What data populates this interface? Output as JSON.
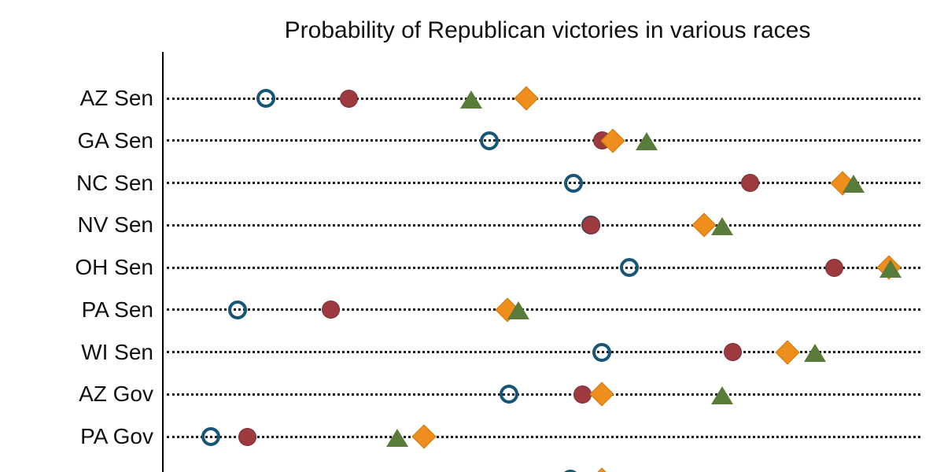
{
  "title": "Probability of Republican victories in various races",
  "chart_data": {
    "type": "scatter",
    "subtype": "cleveland-dot-plot",
    "title": "Probability of Republican victories in various races",
    "xlabel": "",
    "ylabel": "",
    "xlim": [
      0,
      100
    ],
    "x_axis_labels_visible": false,
    "grid": "horizontal dotted guide line per category",
    "legend": "none visible",
    "categories": [
      "AZ Sen",
      "GA Sen",
      "NC Sen",
      "NV Sen",
      "OH Sen",
      "PA Sen",
      "WI Sen",
      "AZ Gov",
      "PA Gov"
    ],
    "series": [
      {
        "name": "forecast-open-circle",
        "marker": "open-circle",
        "color": "#175676",
        "values": [
          13.6,
          43.1,
          54.2,
          56.5,
          61.6,
          9.9,
          57.9,
          45.7,
          6.3
        ]
      },
      {
        "name": "forecast-filled-circle",
        "marker": "filled-circle",
        "color": "#9c3a40",
        "values": [
          24.6,
          58.0,
          77.5,
          56.5,
          88.6,
          22.2,
          75.2,
          55.4,
          11.2
        ]
      },
      {
        "name": "forecast-diamond",
        "marker": "diamond",
        "color": "#ee8e1d",
        "values": [
          48.0,
          59.4,
          89.7,
          71.4,
          95.8,
          45.5,
          82.4,
          57.9,
          34.5
        ]
      },
      {
        "name": "forecast-triangle",
        "marker": "triangle",
        "color": "#5a7c3a",
        "values": [
          40.7,
          63.9,
          91.2,
          73.8,
          96.1,
          46.9,
          86.1,
          73.8,
          30.9
        ]
      }
    ],
    "partial_bottom_row_cut_off_by_crop": {
      "note": "tops of two markers of a tenth row peek above the bottom edge",
      "visible_markers": [
        {
          "marker": "open-circle",
          "value": 53.8
        },
        {
          "marker": "diamond",
          "value": 57.9
        }
      ]
    }
  },
  "colors": {
    "background": "#ffffff",
    "axis": "#000000",
    "guide_dots": "#1c1c1c",
    "text": "#111111",
    "series_open_circle": "#175676",
    "series_filled_circle": "#9c3a40",
    "series_diamond": "#ee8e1d",
    "series_triangle": "#5a7c3a"
  }
}
